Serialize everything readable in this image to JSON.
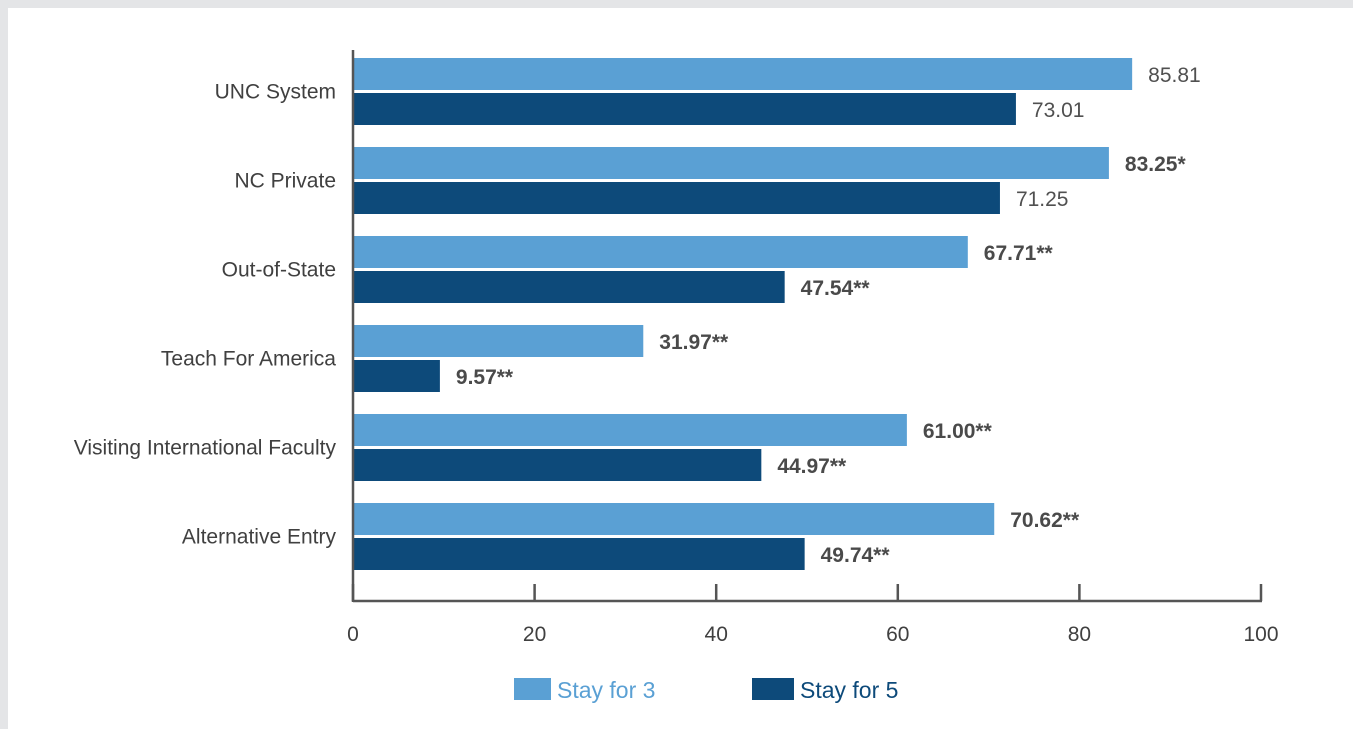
{
  "colors": {
    "stay3": "#5aa0d4",
    "stay5": "#0d4a7a",
    "axis": "#555555",
    "text": "#404040"
  },
  "chart_data": {
    "type": "bar",
    "orientation": "horizontal",
    "title": "",
    "xlabel": "",
    "ylabel": "",
    "xlim": [
      0,
      100
    ],
    "xticks": [
      0,
      20,
      40,
      60,
      80,
      100
    ],
    "grid": false,
    "legend_position": "bottom",
    "categories": [
      "UNC System",
      "NC Private",
      "Out-of-State",
      "Teach For America",
      "Visiting International Faculty",
      "Alternative Entry"
    ],
    "series": [
      {
        "name": "Stay for 3",
        "values": [
          85.81,
          83.25,
          67.71,
          31.97,
          61.0,
          70.62
        ],
        "labels": [
          "85.81",
          "83.25*",
          "67.71**",
          "31.97**",
          "61.00**",
          "70.62**"
        ],
        "label_bold": [
          false,
          true,
          true,
          true,
          true,
          true
        ]
      },
      {
        "name": "Stay for 5",
        "values": [
          73.01,
          71.25,
          47.54,
          9.57,
          44.97,
          49.74
        ],
        "labels": [
          "73.01",
          "71.25",
          "47.54**",
          "9.57**",
          "44.97**",
          "49.74**"
        ],
        "label_bold": [
          false,
          false,
          true,
          true,
          true,
          true
        ]
      }
    ]
  }
}
